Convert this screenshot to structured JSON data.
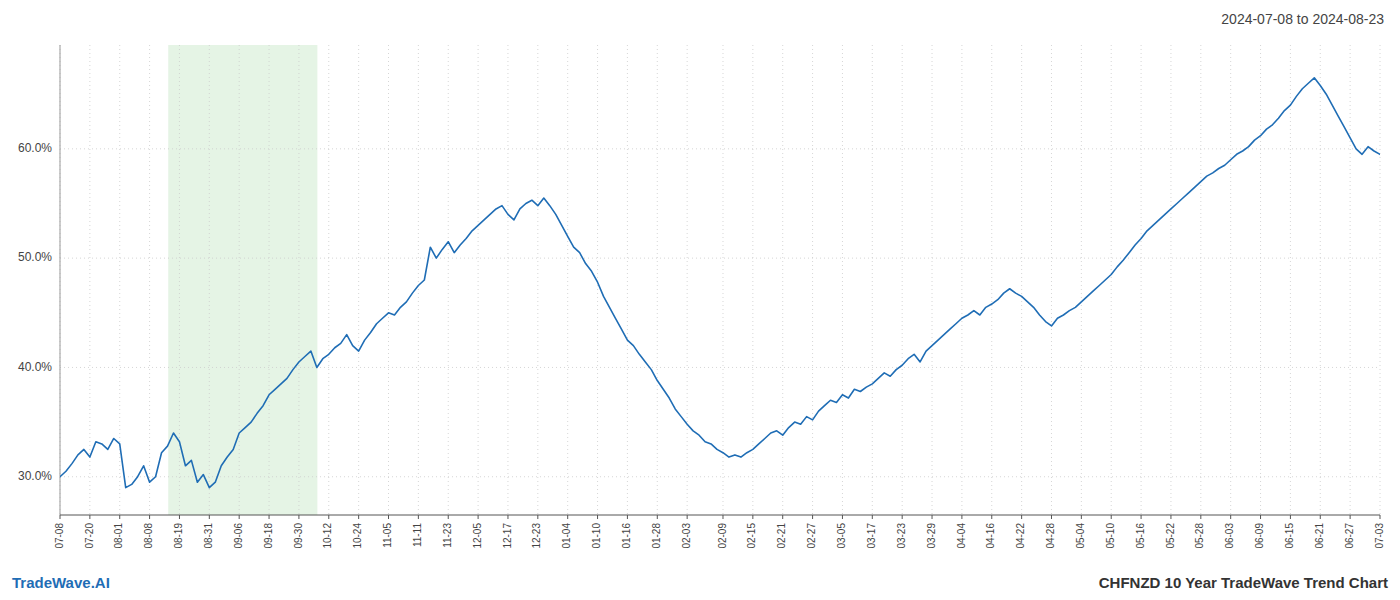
{
  "chart_data": {
    "type": "line",
    "title": "2024-07-08 to 2024-08-23",
    "footer_left": "TradeWave.AI",
    "footer_right": "CHFNZD 10 Year TradeWave Trend Chart",
    "color": "#1f6db5",
    "grid": true,
    "ylim": [
      0.265,
      0.695
    ],
    "yticks": [
      {
        "value": 0.3,
        "label": "30.0%"
      },
      {
        "value": 0.4,
        "label": "40.0%"
      },
      {
        "value": 0.5,
        "label": "50.0%"
      },
      {
        "value": 0.6,
        "label": "60.0%"
      }
    ],
    "highlight": {
      "x": [
        18.122,
        43.095
      ],
      "color": "#d4ecd4"
    },
    "categories": [
      "07-08",
      null,
      null,
      null,
      null,
      "07-20",
      null,
      null,
      null,
      null,
      "08-01",
      null,
      null,
      null,
      null,
      "08-08",
      null,
      null,
      null,
      null,
      "08-19",
      null,
      null,
      null,
      null,
      "08-31",
      null,
      null,
      null,
      null,
      "09-06",
      null,
      null,
      null,
      null,
      "09-18",
      null,
      null,
      null,
      null,
      "09-30",
      null,
      null,
      null,
      null,
      "10-12",
      null,
      null,
      null,
      null,
      "10-24",
      null,
      null,
      null,
      null,
      "11-05",
      null,
      null,
      null,
      null,
      "11-11",
      null,
      null,
      null,
      null,
      "11-23",
      null,
      null,
      null,
      null,
      "12-05",
      null,
      null,
      null,
      null,
      "12-17",
      null,
      null,
      null,
      null,
      "12-23",
      null,
      null,
      null,
      null,
      "01-04",
      null,
      null,
      null,
      null,
      "01-10",
      null,
      null,
      null,
      null,
      "01-16",
      null,
      null,
      null,
      null,
      "01-28",
      null,
      null,
      null,
      null,
      "02-03",
      null,
      null,
      null,
      null,
      null,
      "02-09",
      null,
      null,
      null,
      null,
      "02-15",
      null,
      null,
      null,
      null,
      "02-21",
      null,
      null,
      null,
      null,
      "02-27",
      null,
      null,
      null,
      null,
      "03-05",
      null,
      null,
      null,
      null,
      "03-17",
      null,
      null,
      null,
      null,
      "03-23",
      null,
      null,
      null,
      null,
      "03-29",
      null,
      null,
      null,
      null,
      "04-04",
      null,
      null,
      null,
      null,
      "04-16",
      null,
      null,
      null,
      null,
      "04-22",
      null,
      null,
      null,
      null,
      "04-28",
      null,
      null,
      null,
      null,
      "05-04",
      null,
      null,
      null,
      null,
      "05-10",
      null,
      null,
      null,
      null,
      "05-16",
      null,
      null,
      null,
      null,
      "05-22",
      null,
      null,
      null,
      null,
      "05-28",
      null,
      null,
      null,
      null,
      "06-03",
      null,
      null,
      null,
      null,
      "06-09",
      null,
      null,
      null,
      null,
      "06-15",
      null,
      null,
      null,
      null,
      "06-21",
      null,
      null,
      null,
      null,
      "06-27",
      null,
      null,
      null,
      null,
      "07-03"
    ],
    "values": [
      0.3,
      0.305,
      0.312,
      0.32,
      0.325,
      0.318,
      0.332,
      0.33,
      0.325,
      0.335,
      0.33,
      0.29,
      0.293,
      0.3,
      0.31,
      0.295,
      0.3,
      0.322,
      0.328,
      0.34,
      0.332,
      0.31,
      0.315,
      0.295,
      0.302,
      0.29,
      0.295,
      0.31,
      0.318,
      0.325,
      0.34,
      0.345,
      0.35,
      0.358,
      0.365,
      0.375,
      0.38,
      0.385,
      0.39,
      0.398,
      0.405,
      0.41,
      0.415,
      0.4,
      0.408,
      0.412,
      0.418,
      0.422,
      0.43,
      0.42,
      0.415,
      0.425,
      0.432,
      0.44,
      0.445,
      0.45,
      0.448,
      0.455,
      0.46,
      0.468,
      0.475,
      0.48,
      0.51,
      0.5,
      0.508,
      0.515,
      0.505,
      0.512,
      0.518,
      0.525,
      0.53,
      0.535,
      0.54,
      0.545,
      0.548,
      0.54,
      0.535,
      0.545,
      0.55,
      0.553,
      0.548,
      0.555,
      0.548,
      0.54,
      0.53,
      0.52,
      0.51,
      0.505,
      0.495,
      0.488,
      0.478,
      0.465,
      0.455,
      0.445,
      0.435,
      0.425,
      0.42,
      0.412,
      0.405,
      0.398,
      0.388,
      0.38,
      0.372,
      0.362,
      0.355,
      0.348,
      0.342,
      0.338,
      0.332,
      0.33,
      0.325,
      0.322,
      0.318,
      0.32,
      0.318,
      0.322,
      0.325,
      0.33,
      0.335,
      0.34,
      0.342,
      0.338,
      0.345,
      0.35,
      0.348,
      0.355,
      0.352,
      0.36,
      0.365,
      0.37,
      0.368,
      0.375,
      0.372,
      0.38,
      0.378,
      0.382,
      0.385,
      0.39,
      0.395,
      0.392,
      0.398,
      0.402,
      0.408,
      0.412,
      0.405,
      0.415,
      0.42,
      0.425,
      0.43,
      0.435,
      0.44,
      0.445,
      0.448,
      0.452,
      0.448,
      0.455,
      0.458,
      0.462,
      0.468,
      0.472,
      0.468,
      0.465,
      0.46,
      0.455,
      0.448,
      0.442,
      0.438,
      0.445,
      0.448,
      0.452,
      0.455,
      0.46,
      0.465,
      0.47,
      0.475,
      0.48,
      0.485,
      0.492,
      0.498,
      0.505,
      0.512,
      0.518,
      0.525,
      0.53,
      0.535,
      0.54,
      0.545,
      0.55,
      0.555,
      0.56,
      0.565,
      0.57,
      0.575,
      0.578,
      0.582,
      0.585,
      0.59,
      0.595,
      0.598,
      0.602,
      0.608,
      0.612,
      0.618,
      0.622,
      0.628,
      0.635,
      0.64,
      0.648,
      0.655,
      0.66,
      0.665,
      0.658,
      0.65,
      0.64,
      0.63,
      0.62,
      0.61,
      0.6,
      0.595,
      0.602,
      0.598,
      0.595
    ]
  }
}
